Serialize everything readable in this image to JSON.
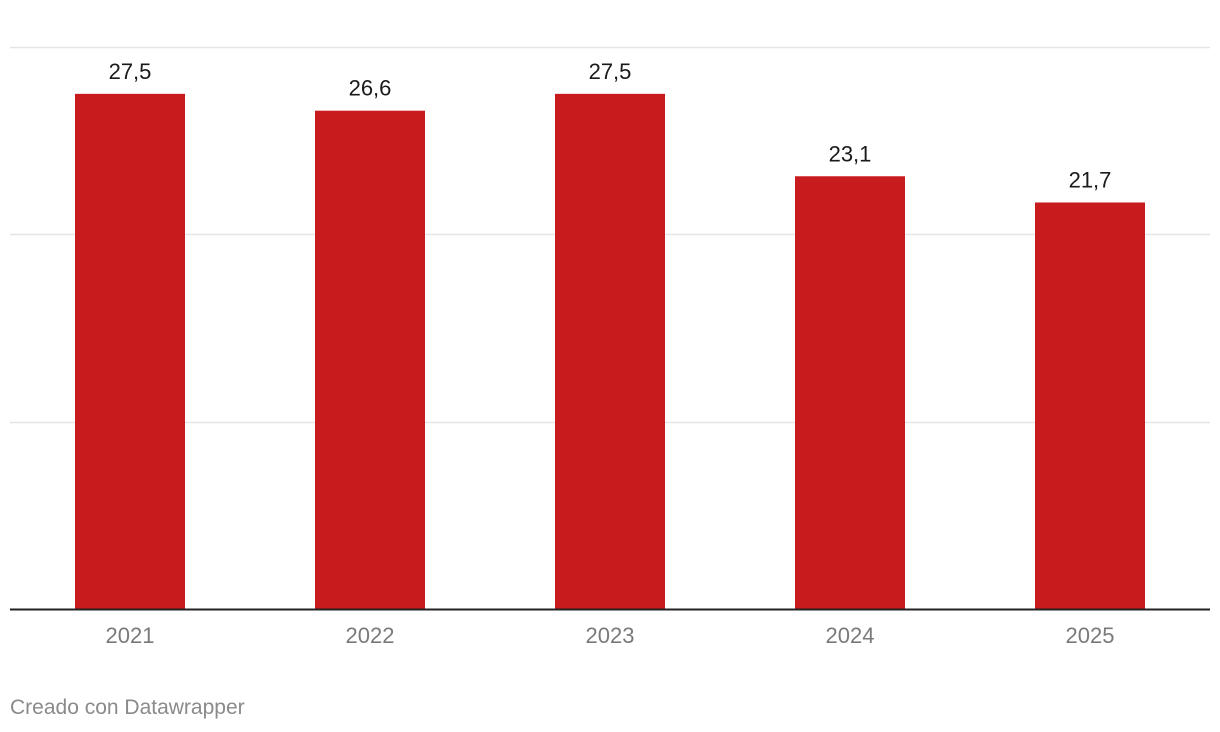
{
  "chart_data": {
    "type": "bar",
    "categories": [
      "2021",
      "2022",
      "2023",
      "2024",
      "2025"
    ],
    "values": [
      27.5,
      26.6,
      27.5,
      23.1,
      21.7
    ],
    "value_labels": [
      "27,5",
      "26,6",
      "27,5",
      "23,1",
      "21,7"
    ],
    "title": "",
    "xlabel": "",
    "ylabel": "",
    "ylim": [
      0,
      30
    ],
    "grid": true,
    "colors": {
      "bar": "#c81b1e",
      "gridline": "#e5e5e5",
      "baseline": "#222222",
      "value_label": "#1a1a1a",
      "tick_label": "#7a7a7a"
    }
  },
  "footer": {
    "credit": "Creado con Datawrapper"
  }
}
